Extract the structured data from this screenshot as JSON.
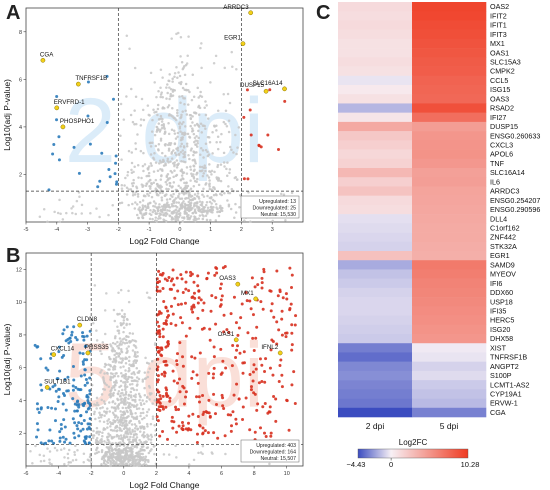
{
  "colors": {
    "upregulated": "#d7301f",
    "downregulated": "#2b7bba",
    "neutral": "#c8c8c8",
    "highlight": "#f2d01a",
    "heat_low": "#3b4cc0",
    "heat_mid": "#f7f0f5",
    "heat_high": "#ef3b22"
  },
  "panel_letters": {
    "a": "A",
    "b": "B",
    "c": "C"
  },
  "chart_data": [
    {
      "type": "scatter",
      "panel": "A",
      "watermark": "2 dpi",
      "xlabel": "Log2 Fold Change",
      "ylabel": "Log10(adj P-value)",
      "xlim": [
        -5,
        4
      ],
      "ylim": [
        0,
        9
      ],
      "xticks": [
        -5,
        -4,
        -3,
        -2,
        -1,
        0,
        1,
        2,
        3
      ],
      "yticks": [
        2,
        4,
        6,
        8
      ],
      "fc_thresholds": [
        -2,
        2
      ],
      "p_threshold": 1.3,
      "legend": {
        "up": "Upregulated: 13",
        "down": "Downregulated: 25",
        "neutral": "Neutral: 15,530"
      },
      "labeled_genes": [
        {
          "name": "ARRDC3",
          "x": 2.3,
          "y": 8.8
        },
        {
          "name": "EGR1",
          "x": 2.05,
          "y": 7.5
        },
        {
          "name": "CGA",
          "x": -4.45,
          "y": 6.8
        },
        {
          "name": "TNFRSF1B",
          "x": -3.3,
          "y": 5.8
        },
        {
          "name": "DUSP15",
          "x": 2.8,
          "y": 5.5
        },
        {
          "name": "SLC16A14",
          "x": 3.4,
          "y": 5.6
        },
        {
          "name": "ERVFRD-1",
          "x": -4.0,
          "y": 4.8
        },
        {
          "name": "PHOSPHO1",
          "x": -3.8,
          "y": 4.0
        }
      ]
    },
    {
      "type": "scatter",
      "panel": "B",
      "watermark": "5 dpi",
      "xlabel": "Log2 Fold Change",
      "ylabel": "Log10(adj P-value)",
      "xlim": [
        -6,
        11
      ],
      "ylim": [
        0,
        13
      ],
      "xticks": [
        -6,
        -4,
        -2,
        0,
        2,
        4,
        6,
        8,
        10
      ],
      "yticks": [
        2,
        4,
        6,
        8,
        10,
        12
      ],
      "fc_thresholds": [
        -2,
        2
      ],
      "p_threshold": 1.3,
      "legend": {
        "up": "Upregulated: 403",
        "down": "Downregulated: 164",
        "neutral": "Neutral: 15,507"
      },
      "labeled_genes": [
        {
          "name": "OAS3",
          "x": 7.0,
          "y": 11.1
        },
        {
          "name": "MX1",
          "x": 8.1,
          "y": 10.2
        },
        {
          "name": "CLDN8",
          "x": -2.7,
          "y": 8.6
        },
        {
          "name": "OAS1",
          "x": 6.9,
          "y": 7.7
        },
        {
          "name": "IFNL2",
          "x": 9.6,
          "y": 6.9
        },
        {
          "name": "CXCL14",
          "x": -4.3,
          "y": 6.8
        },
        {
          "name": "PRSS35",
          "x": -2.2,
          "y": 6.9
        },
        {
          "name": "SULT1B1",
          "x": -4.7,
          "y": 4.8
        }
      ]
    },
    {
      "type": "heatmap",
      "panel": "C",
      "columns": [
        "2 dpi",
        "5 dpi"
      ],
      "colorbar_label": "Log2FC",
      "vmin": -4.43,
      "vmax": 10.28,
      "vmin_label": "−4.43",
      "vmid_label": "0",
      "vmax_label": "10.28",
      "rows": [
        {
          "gene": "OAS2",
          "values": [
            0.5,
            9.5
          ]
        },
        {
          "gene": "IFIT2",
          "values": [
            0.4,
            9.3
          ]
        },
        {
          "gene": "IFIT1",
          "values": [
            0.5,
            8.9
          ]
        },
        {
          "gene": "IFIT3",
          "values": [
            0.4,
            8.7
          ]
        },
        {
          "gene": "MX1",
          "values": [
            0.3,
            8.4
          ]
        },
        {
          "gene": "OAS1",
          "values": [
            0.3,
            8.1
          ]
        },
        {
          "gene": "SLC15A3",
          "values": [
            0.4,
            7.8
          ]
        },
        {
          "gene": "CMPK2",
          "values": [
            0.3,
            7.6
          ]
        },
        {
          "gene": "CCL5",
          "values": [
            -0.2,
            7.2
          ]
        },
        {
          "gene": "ISG15",
          "values": [
            0.1,
            7.0
          ]
        },
        {
          "gene": "OAS3",
          "values": [
            0.3,
            6.8
          ]
        },
        {
          "gene": "RSAD2",
          "values": [
            -1.3,
            8.6
          ]
        },
        {
          "gene": "IFI27",
          "values": [
            0.2,
            6.4
          ]
        },
        {
          "gene": "DUSP15",
          "values": [
            2.7,
            3.4
          ]
        },
        {
          "gene": "ENSG0.260633",
          "values": [
            1.2,
            3.8
          ]
        },
        {
          "gene": "CXCL3",
          "values": [
            0.9,
            3.9
          ]
        },
        {
          "gene": "APOL6",
          "values": [
            0.6,
            4.0
          ]
        },
        {
          "gene": "TNF",
          "values": [
            0.8,
            3.7
          ]
        },
        {
          "gene": "SLC16A14",
          "values": [
            1.9,
            3.2
          ]
        },
        {
          "gene": "IL6",
          "values": [
            0.9,
            3.3
          ]
        },
        {
          "gene": "ARRDC3",
          "values": [
            1.4,
            3.0
          ]
        },
        {
          "gene": "ENSG0.254207",
          "values": [
            0.5,
            2.9
          ]
        },
        {
          "gene": "ENSG0.290596",
          "values": [
            0.4,
            2.8
          ]
        },
        {
          "gene": "DLL4",
          "values": [
            -0.3,
            2.7
          ]
        },
        {
          "gene": "C1orf162",
          "values": [
            -0.4,
            2.6
          ]
        },
        {
          "gene": "ZNF442",
          "values": [
            -0.5,
            2.6
          ]
        },
        {
          "gene": "STK32A",
          "values": [
            -0.6,
            2.5
          ]
        },
        {
          "gene": "EGR1",
          "values": [
            1.5,
            2.4
          ]
        },
        {
          "gene": "SAMD9",
          "values": [
            -1.6,
            5.6
          ]
        },
        {
          "gene": "MYEOV",
          "values": [
            -1.0,
            5.3
          ]
        },
        {
          "gene": "IFI6",
          "values": [
            -0.8,
            5.0
          ]
        },
        {
          "gene": "DDX60",
          "values": [
            -0.6,
            4.8
          ]
        },
        {
          "gene": "USP18",
          "values": [
            -0.5,
            4.6
          ]
        },
        {
          "gene": "IFI35",
          "values": [
            -0.5,
            4.4
          ]
        },
        {
          "gene": "HERC5",
          "values": [
            -0.6,
            4.2
          ]
        },
        {
          "gene": "ISG20",
          "values": [
            -0.7,
            4.0
          ]
        },
        {
          "gene": "DHX58",
          "values": [
            -0.8,
            3.8
          ]
        },
        {
          "gene": "XIST",
          "values": [
            -2.9,
            -0.1
          ]
        },
        {
          "gene": "TNFRSF1B",
          "values": [
            -3.4,
            -0.2
          ]
        },
        {
          "gene": "ANGPT2",
          "values": [
            -2.6,
            -0.6
          ]
        },
        {
          "gene": "S100P",
          "values": [
            -2.4,
            -0.4
          ]
        },
        {
          "gene": "LCMT1-AS2",
          "values": [
            -2.7,
            -0.8
          ]
        },
        {
          "gene": "CYP19A1",
          "values": [
            -2.9,
            -1.0
          ]
        },
        {
          "gene": "ERVW-1",
          "values": [
            -3.1,
            -1.2
          ]
        },
        {
          "gene": "CGA",
          "values": [
            -4.43,
            -2.8
          ]
        }
      ]
    }
  ]
}
